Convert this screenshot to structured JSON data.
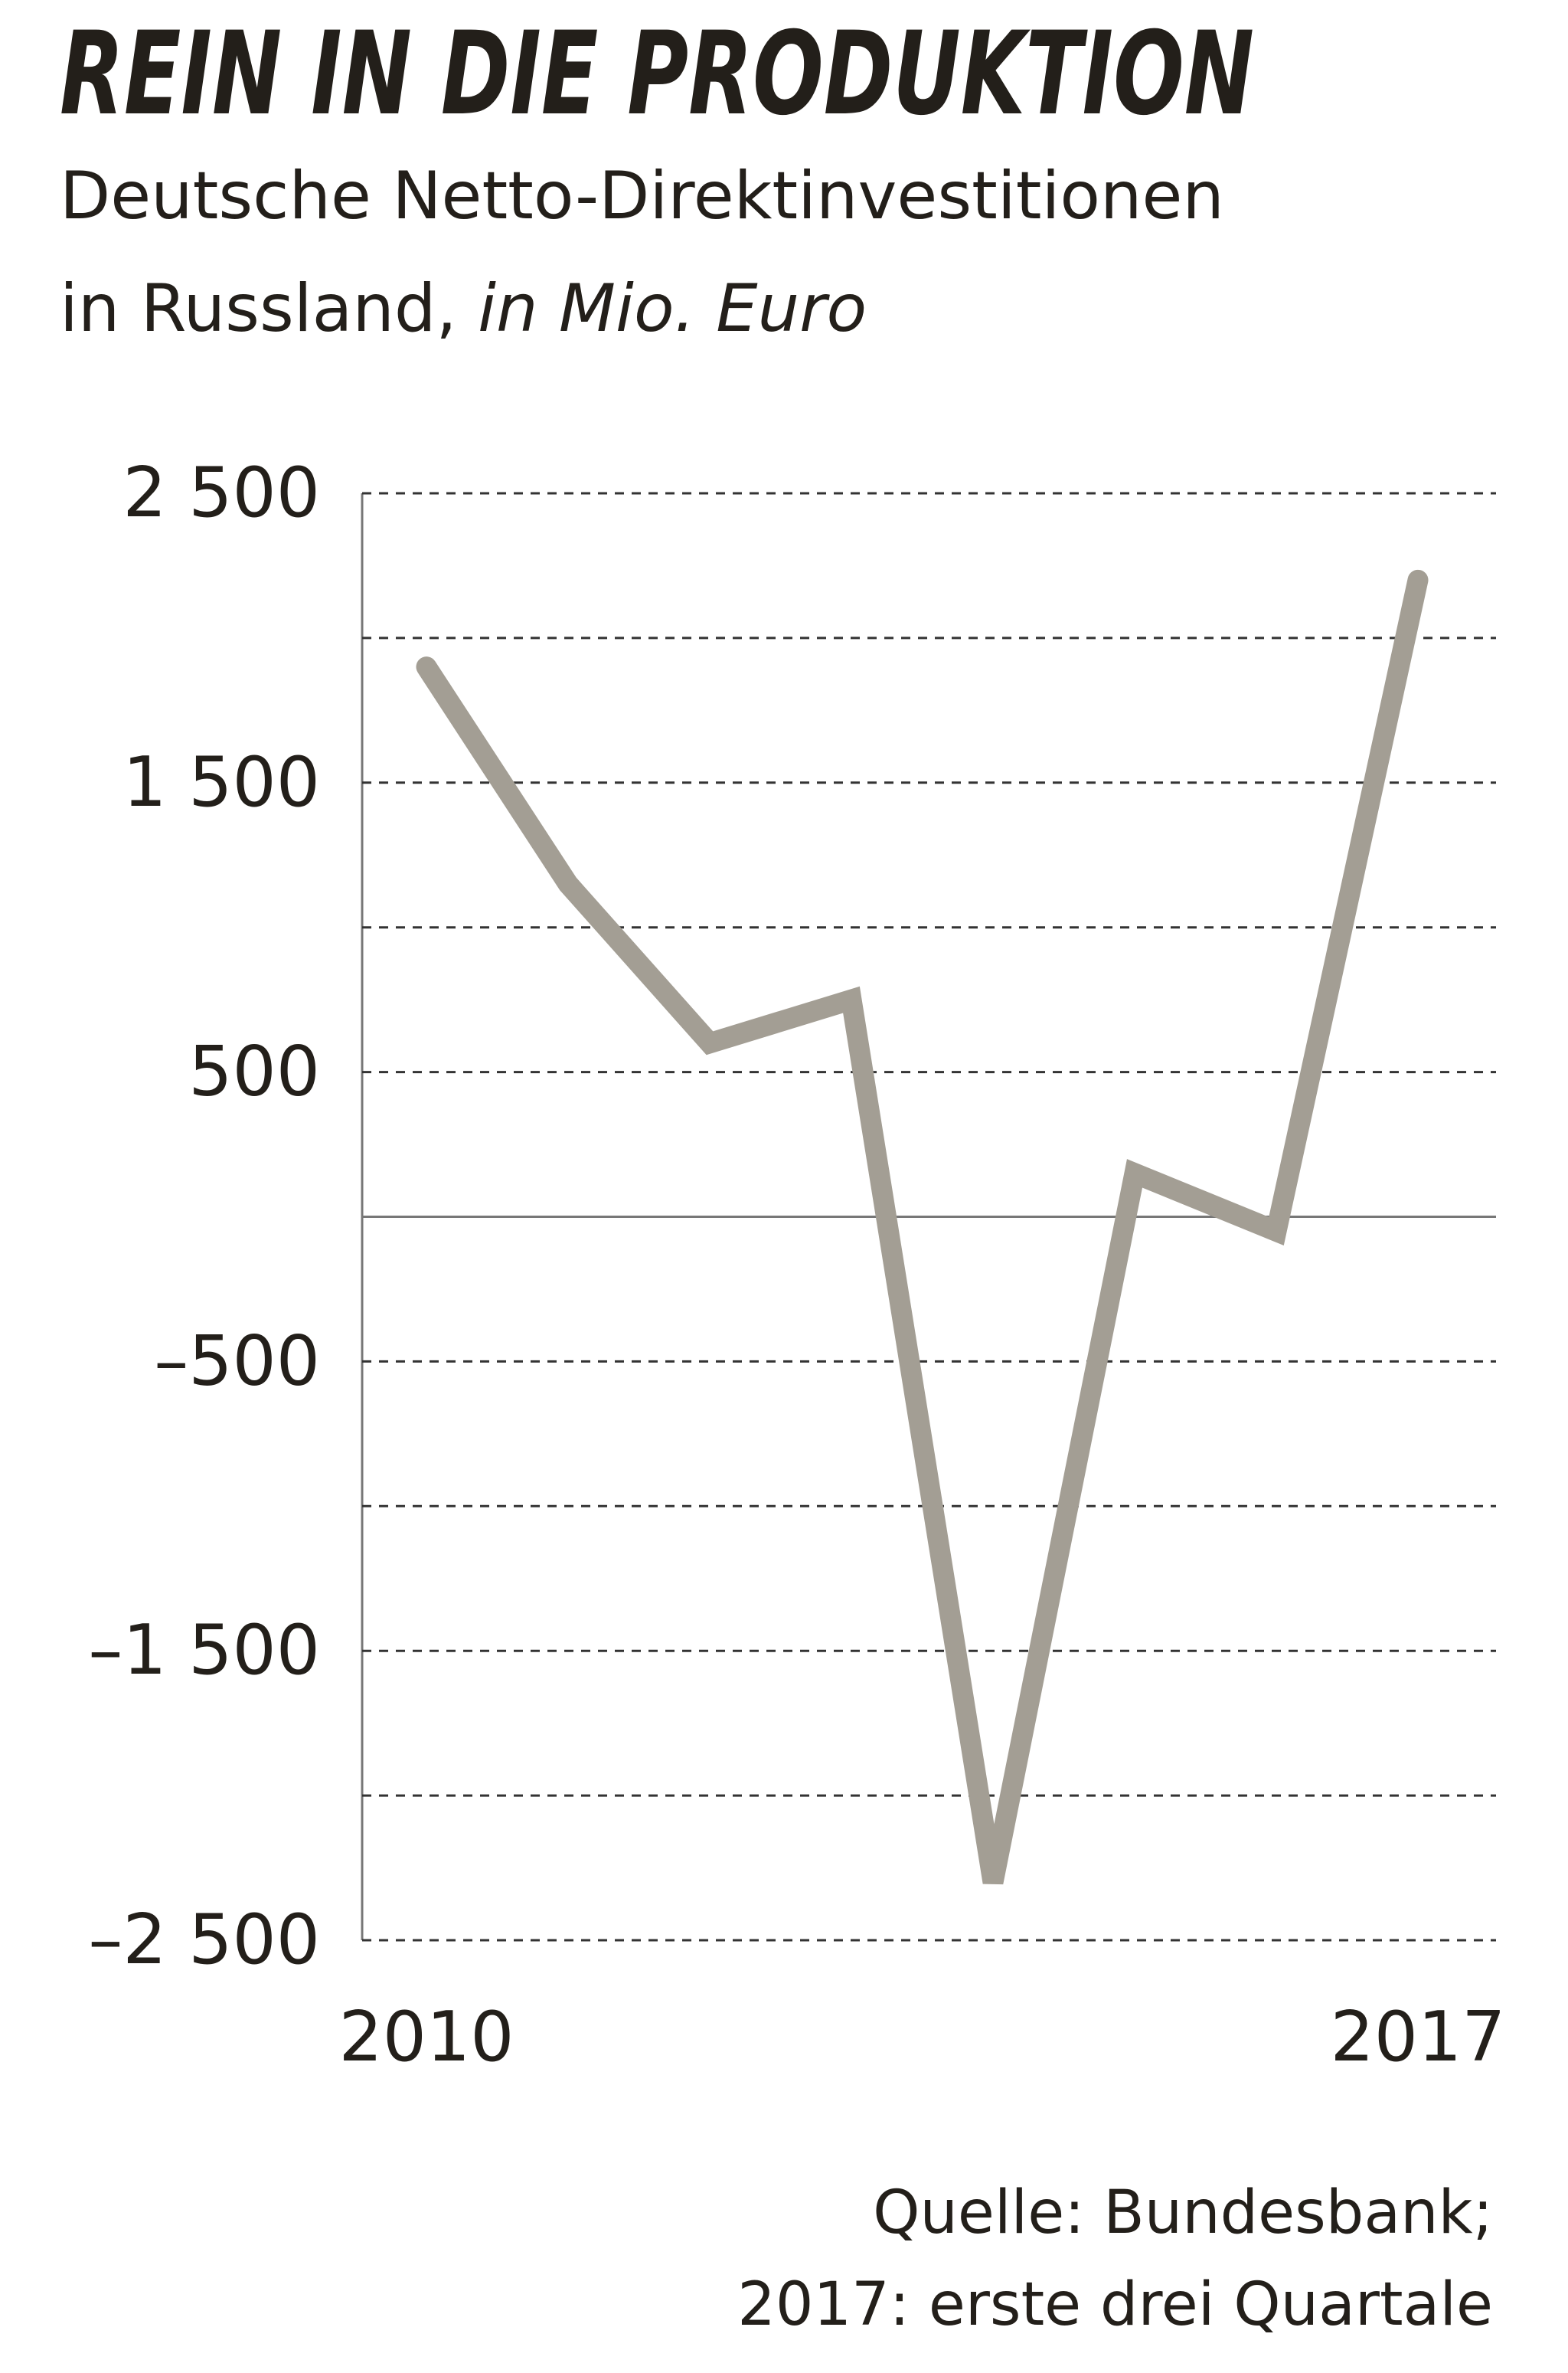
{
  "chart_data": {
    "type": "line",
    "title": "REIN IN DIE PRODUKTION",
    "subtitle": [
      "Deutsche Netto-Direktinvestitionen",
      "in Russland,"
    ],
    "unit": "in Mio. Euro",
    "categories": [
      "2010",
      null,
      null,
      null,
      null,
      null,
      null,
      "2017"
    ],
    "series": [
      {
        "color": "#a39e94",
        "values": [
          1900,
          1150,
          600,
          750,
          -2300,
          150,
          -50,
          2200
        ]
      }
    ],
    "ylim": [
      -2500,
      2500
    ],
    "yticks": [
      {
        "value": 2500,
        "label": "2 500"
      },
      {
        "value": 1500,
        "label": "1 500"
      },
      500,
      {
        "value": -500,
        "label": "–500"
      },
      {
        "value": -1500,
        "label": "–1 500"
      },
      {
        "value": -2500,
        "label": "–2 500"
      }
    ],
    "gridlines": [
      2000,
      1000,
      -1000,
      -2000
    ],
    "zero_line": true,
    "grid": true,
    "source": [
      "Quelle: Bundesbank;",
      "2017: erste drei Quartale"
    ]
  }
}
